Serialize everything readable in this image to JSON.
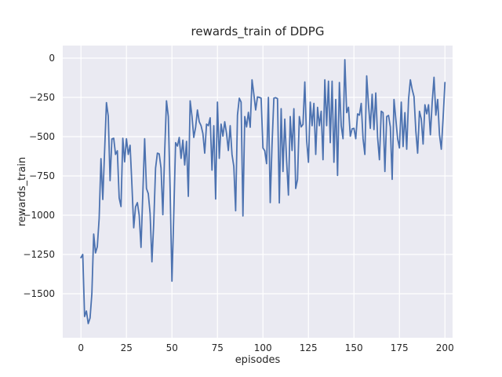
{
  "chart_data": {
    "type": "line",
    "title": "rewards_train of DDPG",
    "xlabel": "episodes",
    "ylabel": "rewards_train",
    "legend": "none",
    "grid": true,
    "xlim": [
      -10,
      204.2
    ],
    "ylim": [
      -1780,
      80
    ],
    "xticks": [
      0,
      25,
      50,
      75,
      100,
      125,
      150,
      175,
      200
    ],
    "xtick_labels": [
      "0",
      "25",
      "50",
      "75",
      "100",
      "125",
      "150",
      "175",
      "200"
    ],
    "yticks": [
      0,
      -250,
      -500,
      -750,
      -1000,
      -1250,
      -1500
    ],
    "ytick_labels": [
      "0",
      "−250",
      "−500",
      "−750",
      "−1000",
      "−1250",
      "−1500"
    ],
    "colors": {
      "line": "#4C72B0",
      "axes_background": "#EAEAF2",
      "figure_background": "#ffffff",
      "grid": "#ffffff",
      "text": "#262626"
    },
    "line_width": 1.8,
    "x0": 0,
    "dx": 1,
    "x_series_note": "episodes 0..200 step 1",
    "values": [
      -1270,
      -1250,
      -1645,
      -1610,
      -1690,
      -1655,
      -1500,
      -1120,
      -1240,
      -1200,
      -1020,
      -640,
      -900,
      -590,
      -283,
      -370,
      -780,
      -515,
      -510,
      -613,
      -590,
      -890,
      -945,
      -510,
      -660,
      -513,
      -613,
      -555,
      -805,
      -1080,
      -947,
      -920,
      -1000,
      -1205,
      -860,
      -513,
      -830,
      -863,
      -990,
      -1297,
      -1050,
      -700,
      -605,
      -610,
      -700,
      -997,
      -600,
      -272,
      -372,
      -838,
      -1420,
      -997,
      -538,
      -560,
      -505,
      -638,
      -522,
      -680,
      -530,
      -880,
      -272,
      -370,
      -505,
      -440,
      -330,
      -405,
      -430,
      -480,
      -605,
      -420,
      -430,
      -380,
      -713,
      -430,
      -897,
      -280,
      -638,
      -420,
      -497,
      -405,
      -480,
      -588,
      -430,
      -613,
      -690,
      -972,
      -363,
      -255,
      -280,
      -1005,
      -372,
      -438,
      -345,
      -440,
      -138,
      -230,
      -330,
      -247,
      -250,
      -255,
      -572,
      -590,
      -672,
      -250,
      -920,
      -550,
      -255,
      -252,
      -258,
      -922,
      -322,
      -722,
      -388,
      -655,
      -872,
      -372,
      -588,
      -322,
      -830,
      -772,
      -372,
      -438,
      -422,
      -152,
      -522,
      -663,
      -280,
      -430,
      -288,
      -613,
      -313,
      -430,
      -338,
      -647,
      -138,
      -430,
      -147,
      -538,
      -147,
      -663,
      -263,
      -747,
      -155,
      -430,
      -513,
      -10,
      -347,
      -313,
      -497,
      -450,
      -447,
      -513,
      -355,
      -363,
      -288,
      -513,
      -613,
      -113,
      -297,
      -447,
      -230,
      -455,
      -222,
      -505,
      -647,
      -338,
      -347,
      -722,
      -372,
      -365,
      -438,
      -772,
      -263,
      -388,
      -513,
      -572,
      -280,
      -563,
      -347,
      -580,
      -263,
      -138,
      -200,
      -245,
      -463,
      -605,
      -338,
      -388,
      -547,
      -297,
      -355,
      -297,
      -488,
      -280,
      -122,
      -363,
      -263,
      -488,
      -580,
      -380,
      -155
    ]
  }
}
